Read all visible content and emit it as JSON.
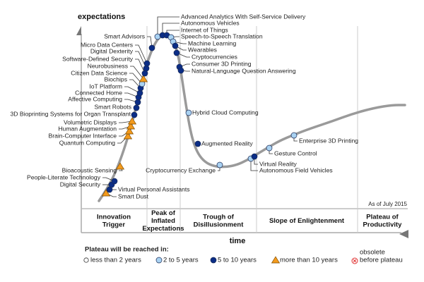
{
  "chart_data": {
    "type": "hype-cycle",
    "ylabel": "expectations",
    "xlabel": "time",
    "annotation": "As of July 2015",
    "phases": [
      "Innovation Trigger",
      "Peak of Inflated Expectations",
      "Trough of Disillusionment",
      "Slope of Enlightenment",
      "Plateau of Productivity"
    ],
    "phase_lines": [
      [
        "Innovation",
        "Trigger"
      ],
      [
        "Peak of",
        "Inflated",
        "Expectations"
      ],
      [
        "Trough of",
        "Disillusionment"
      ],
      [
        "Slope of Enlightenment"
      ],
      [
        "Plateau of",
        "Productivity"
      ]
    ],
    "categories": {
      "lt2": {
        "label": "less than 2 years",
        "color": "#ffffff"
      },
      "2to5": {
        "label": "2 to 5 years",
        "color": "#a9d2f2"
      },
      "5to10": {
        "label": "5 to 10 years",
        "color": "#0b2d86"
      },
      "gt10": {
        "label": "more than 10 years",
        "color": "#f39a1c"
      },
      "obsolete": {
        "label": "obsolete before plateau",
        "label_lines": [
          "obsolete",
          "before plateau"
        ],
        "color": "#e03030"
      }
    },
    "legend_title": "Plateau will be reached in:",
    "curve_color": "#9a9a9a",
    "items": [
      {
        "name": "Smart Dust",
        "category": "gt10",
        "phase": "Innovation Trigger"
      },
      {
        "name": "Virtual Personal Assistants",
        "category": "5to10",
        "phase": "Innovation Trigger"
      },
      {
        "name": "Digital Security",
        "category": "5to10",
        "phase": "Innovation Trigger"
      },
      {
        "name": "People-Literate Technology",
        "category": "5to10",
        "phase": "Innovation Trigger"
      },
      {
        "name": "Bioacoustic Sensing",
        "category": "gt10",
        "phase": "Innovation Trigger"
      },
      {
        "name": "Quantum Computing",
        "category": "gt10",
        "phase": "Innovation Trigger"
      },
      {
        "name": "Brain-Computer Interface",
        "category": "gt10",
        "phase": "Innovation Trigger"
      },
      {
        "name": "Human Augmentation",
        "category": "gt10",
        "phase": "Innovation Trigger"
      },
      {
        "name": "Volumetric Displays",
        "category": "gt10",
        "phase": "Innovation Trigger"
      },
      {
        "name": "3D Bioprinting Systems for Organ Transplant",
        "category": "5to10",
        "phase": "Innovation Trigger"
      },
      {
        "name": "Smart Robots",
        "category": "5to10",
        "phase": "Innovation Trigger"
      },
      {
        "name": "Affective  Computing",
        "category": "5to10",
        "phase": "Innovation Trigger"
      },
      {
        "name": "Connected Home",
        "category": "5to10",
        "phase": "Innovation Trigger"
      },
      {
        "name": "IoT Platform",
        "category": "5to10",
        "phase": "Innovation Trigger"
      },
      {
        "name": "Biochips",
        "category": "5to10",
        "phase": "Innovation Trigger"
      },
      {
        "name": "Citizen Data Science",
        "category": "2to5",
        "phase": "Innovation Trigger"
      },
      {
        "name": "Neurobusiness",
        "category": "gt10",
        "phase": "Innovation Trigger"
      },
      {
        "name": "Software-Defined Security",
        "category": "5to10",
        "phase": "Innovation Trigger"
      },
      {
        "name": "Digital Dexterity",
        "category": "5to10",
        "phase": "Innovation Trigger"
      },
      {
        "name": "Micro Data Centers",
        "category": "5to10",
        "phase": "Innovation Trigger"
      },
      {
        "name": "Smart Advisors",
        "category": "5to10",
        "phase": "Peak of Inflated Expectations"
      },
      {
        "name": "Advanced Analytics With Self-Service Delivery",
        "category": "2to5",
        "phase": "Peak of Inflated Expectations"
      },
      {
        "name": "Autonomous Vehicles",
        "category": "5to10",
        "phase": "Peak of Inflated Expectations"
      },
      {
        "name": "Internet of Things",
        "category": "5to10",
        "phase": "Peak of Inflated Expectations"
      },
      {
        "name": "Speech-to-Speech Translation",
        "category": "2to5",
        "phase": "Peak of Inflated Expectations"
      },
      {
        "name": "Machine Learning",
        "category": "2to5",
        "phase": "Peak of Inflated Expectations"
      },
      {
        "name": "Wearables",
        "category": "5to10",
        "phase": "Peak of Inflated Expectations"
      },
      {
        "name": "Cryptocurrencies",
        "category": "5to10",
        "phase": "Peak of Inflated Expectations"
      },
      {
        "name": "Consumer 3D Printing",
        "category": "5to10",
        "phase": "Peak of Inflated Expectations"
      },
      {
        "name": "Natural-Language Question Answering",
        "category": "5to10",
        "phase": "Peak of Inflated Expectations"
      },
      {
        "name": "Hybrid Cloud Computing",
        "category": "2to5",
        "phase": "Trough of Disillusionment"
      },
      {
        "name": "Augmented Reality",
        "category": "5to10",
        "phase": "Trough of Disillusionment"
      },
      {
        "name": "Cryptocurrency Exchange",
        "category": "2to5",
        "phase": "Trough of Disillusionment"
      },
      {
        "name": "Autonomous Field Vehicles",
        "category": "2to5",
        "phase": "Trough of Disillusionment"
      },
      {
        "name": "Virtual Reality",
        "category": "5to10",
        "phase": "Trough of Disillusionment"
      },
      {
        "name": "Gesture Control",
        "category": "2to5",
        "phase": "Slope of Enlightenment"
      },
      {
        "name": "Enterprise 3D Printing",
        "category": "2to5",
        "phase": "Slope of Enlightenment"
      }
    ]
  }
}
